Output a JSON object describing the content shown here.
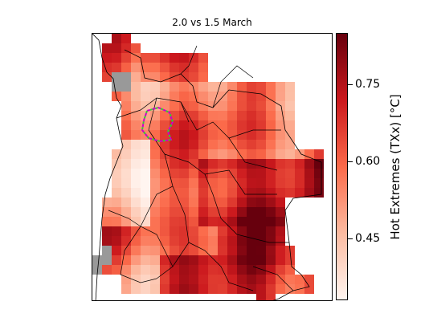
{
  "title": "2.0 vs 1.5 March",
  "colorbar": {
    "label": "Hot Extremes (TXx) [°C]",
    "ticks": [
      "0.75",
      "0.60",
      "0.45"
    ],
    "range": [
      0.35,
      0.85
    ],
    "colormap": [
      "#fff5f0",
      "#fcbba1",
      "#fb6a4a",
      "#cb181d",
      "#67000d"
    ]
  },
  "map": {
    "missing_color": "#999999",
    "highlight_outline_colors": [
      "#cc00cc",
      "#33cc33"
    ]
  }
}
